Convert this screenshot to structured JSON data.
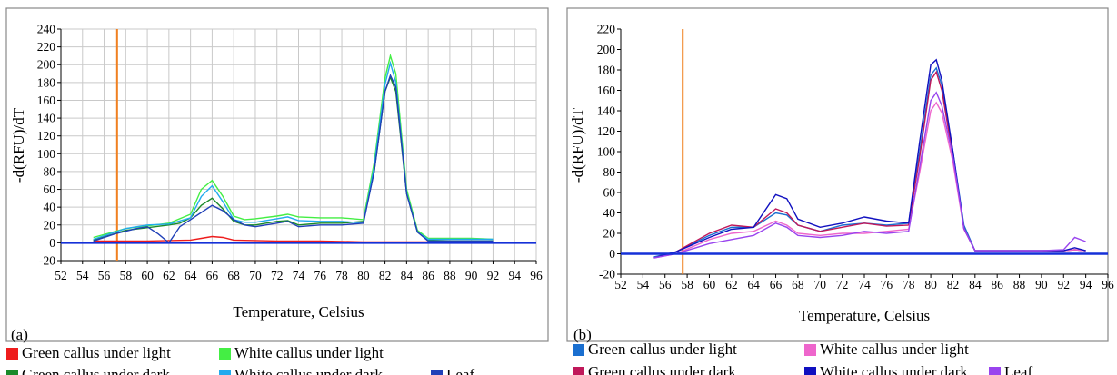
{
  "chart_data": [
    {
      "type": "line",
      "panel_label": "(a)",
      "xlabel": "Temperature, Celsius",
      "ylabel": "-d(RFU)/dT",
      "xlim": [
        52,
        96
      ],
      "ylim": [
        -20,
        240
      ],
      "xticks": [
        52,
        54,
        56,
        58,
        60,
        62,
        64,
        66,
        68,
        70,
        72,
        74,
        76,
        78,
        80,
        82,
        84,
        86,
        88,
        90,
        92,
        94,
        96
      ],
      "yticks": [
        -20,
        0,
        20,
        40,
        60,
        80,
        100,
        120,
        140,
        160,
        180,
        200,
        220,
        240
      ],
      "grid": true,
      "threshold": 0,
      "marker_line_x": 57.2,
      "marker_color": "#f08020",
      "series": [
        {
          "name": "Green callus under light",
          "color": "#ee1c1c",
          "x": [
            55,
            60,
            64,
            65,
            66,
            67,
            68,
            72,
            76,
            80,
            82,
            84,
            86,
            90,
            92
          ],
          "y": [
            2,
            2,
            3,
            5,
            7,
            6,
            3,
            2,
            2,
            1,
            1,
            1,
            1,
            1,
            1
          ]
        },
        {
          "name": "Green callus under dark",
          "color": "#1a8a2a",
          "x": [
            55,
            58,
            62,
            63,
            64,
            65,
            66,
            67,
            68,
            69,
            70,
            72,
            73,
            74,
            76,
            78,
            80,
            81,
            82,
            82.5,
            83,
            84,
            85,
            86,
            88,
            90,
            92
          ],
          "y": [
            3,
            14,
            20,
            22,
            28,
            42,
            50,
            38,
            24,
            20,
            20,
            24,
            25,
            20,
            22,
            22,
            24,
            80,
            170,
            186,
            170,
            55,
            12,
            3,
            2,
            2,
            2
          ]
        },
        {
          "name": "White callus under light",
          "color": "#44ee44",
          "x": [
            55,
            58,
            60,
            62,
            64,
            65,
            66,
            67,
            68,
            69,
            70,
            72,
            73,
            74,
            76,
            78,
            80,
            81,
            82,
            82.5,
            83,
            84,
            85,
            86,
            88,
            90,
            92
          ],
          "y": [
            6,
            16,
            19,
            22,
            32,
            60,
            70,
            52,
            30,
            26,
            27,
            30,
            32,
            29,
            28,
            28,
            26,
            90,
            185,
            210,
            190,
            60,
            14,
            5,
            5,
            5,
            4
          ]
        },
        {
          "name": "White callus under dark",
          "color": "#22aaee",
          "x": [
            55,
            58,
            60,
            62,
            64,
            65,
            66,
            67,
            68,
            69,
            70,
            72,
            73,
            74,
            76,
            78,
            80,
            81,
            82,
            82.5,
            83,
            84,
            85,
            86,
            88,
            90,
            92
          ],
          "y": [
            4,
            16,
            20,
            21,
            28,
            52,
            64,
            46,
            26,
            23,
            23,
            27,
            29,
            25,
            24,
            24,
            22,
            85,
            178,
            202,
            180,
            56,
            12,
            4,
            4,
            4,
            4
          ]
        },
        {
          "name": "Leaf",
          "color": "#2040b8",
          "x": [
            55,
            57,
            59,
            60,
            61,
            62,
            63,
            64,
            65,
            66,
            67,
            68,
            69,
            70,
            72,
            73,
            74,
            76,
            78,
            80,
            81,
            82,
            82.5,
            83,
            84,
            85,
            86,
            88,
            90,
            92
          ],
          "y": [
            2,
            10,
            16,
            18,
            10,
            0,
            18,
            26,
            34,
            42,
            36,
            26,
            20,
            18,
            22,
            24,
            18,
            20,
            20,
            22,
            80,
            170,
            188,
            175,
            55,
            12,
            2,
            2,
            2,
            2
          ]
        }
      ]
    },
    {
      "type": "line",
      "panel_label": "(b)",
      "xlabel": "Temperature, Celsius",
      "ylabel": "-d(RFU)/dT",
      "xlim": [
        52,
        96
      ],
      "ylim": [
        -20,
        220
      ],
      "xticks": [
        52,
        54,
        56,
        58,
        60,
        62,
        64,
        66,
        68,
        70,
        72,
        74,
        76,
        78,
        80,
        82,
        84,
        86,
        88,
        90,
        92,
        94,
        96
      ],
      "yticks": [
        -20,
        0,
        20,
        40,
        60,
        80,
        100,
        120,
        140,
        160,
        180,
        200,
        220
      ],
      "grid": false,
      "threshold": 0,
      "marker_line_x": 57.6,
      "marker_color": "#f08020",
      "series": [
        {
          "name": "Green callus under light",
          "color": "#1a6fd0",
          "x": [
            55,
            57,
            60,
            62,
            64,
            66,
            67,
            68,
            70,
            72,
            74,
            76,
            78,
            79,
            80,
            80.5,
            81,
            82,
            83,
            84,
            86,
            90,
            92,
            93,
            94
          ],
          "y": [
            -3,
            2,
            18,
            26,
            26,
            40,
            38,
            28,
            22,
            28,
            30,
            28,
            30,
            100,
            175,
            182,
            165,
            100,
            28,
            3,
            3,
            3,
            3,
            4,
            3
          ]
        },
        {
          "name": "Green callus under dark",
          "color": "#c0185a",
          "x": [
            55,
            57,
            60,
            62,
            64,
            66,
            67,
            68,
            70,
            72,
            74,
            76,
            78,
            79,
            80,
            80.5,
            81,
            82,
            83,
            84,
            86,
            90,
            92,
            93,
            94
          ],
          "y": [
            -4,
            2,
            20,
            28,
            26,
            44,
            40,
            28,
            22,
            26,
            30,
            27,
            28,
            95,
            170,
            178,
            160,
            95,
            25,
            3,
            3,
            3,
            3,
            4,
            3
          ]
        },
        {
          "name": "White callus under light",
          "color": "#ee66cc",
          "x": [
            55,
            57,
            60,
            62,
            64,
            66,
            67,
            68,
            70,
            72,
            74,
            76,
            78,
            79,
            80,
            80.5,
            81,
            82,
            83,
            84,
            86,
            90,
            92,
            93,
            94
          ],
          "y": [
            -4,
            0,
            14,
            20,
            22,
            32,
            28,
            20,
            18,
            20,
            20,
            22,
            24,
            80,
            140,
            148,
            138,
            90,
            24,
            3,
            3,
            3,
            3,
            4,
            3
          ]
        },
        {
          "name": "White callus under dark",
          "color": "#1010c0",
          "x": [
            55,
            57,
            60,
            62,
            64,
            66,
            67,
            68,
            70,
            72,
            74,
            76,
            78,
            79,
            80,
            80.5,
            81,
            82,
            83,
            84,
            86,
            90,
            92,
            93,
            94
          ],
          "y": [
            -4,
            2,
            16,
            24,
            26,
            58,
            54,
            34,
            26,
            30,
            36,
            32,
            30,
            110,
            185,
            190,
            170,
            100,
            25,
            3,
            3,
            3,
            3,
            6,
            3
          ]
        },
        {
          "name": "Leaf",
          "color": "#9944ee",
          "x": [
            55,
            57,
            60,
            62,
            64,
            66,
            67,
            68,
            70,
            72,
            74,
            76,
            78,
            79,
            80,
            80.5,
            81,
            82,
            83,
            84,
            86,
            90,
            92,
            93,
            94
          ],
          "y": [
            -4,
            0,
            10,
            14,
            18,
            30,
            26,
            18,
            16,
            18,
            22,
            20,
            22,
            85,
            150,
            158,
            145,
            95,
            25,
            3,
            3,
            3,
            4,
            16,
            12
          ]
        }
      ]
    }
  ]
}
